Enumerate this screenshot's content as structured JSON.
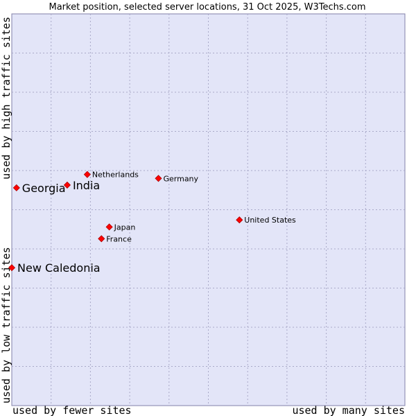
{
  "chart_data": {
    "type": "scatter",
    "title": "Market position, selected server locations, 31 Oct 2025, W3Techs.com",
    "xlabel_left": "used by fewer sites",
    "xlabel_right": "used by many sites",
    "ylabel_bottom": "used by low traffic sites",
    "ylabel_top": "used by high traffic sites",
    "xlim": [
      0,
      100
    ],
    "ylim": [
      0,
      100
    ],
    "grid": true,
    "points": [
      {
        "label": "Georgia",
        "x": 1.2,
        "y": 55.6,
        "highlight": true
      },
      {
        "label": "India",
        "x": 14.1,
        "y": 56.3,
        "highlight": true
      },
      {
        "label": "Netherlands",
        "x": 19.2,
        "y": 59.0,
        "highlight": false
      },
      {
        "label": "Germany",
        "x": 37.3,
        "y": 58.0,
        "highlight": false
      },
      {
        "label": "United States",
        "x": 57.9,
        "y": 47.4,
        "highlight": false
      },
      {
        "label": "Japan",
        "x": 24.8,
        "y": 45.6,
        "highlight": false
      },
      {
        "label": "France",
        "x": 22.8,
        "y": 42.6,
        "highlight": false
      },
      {
        "label": "New Caledonia",
        "x": 0.0,
        "y": 35.2,
        "highlight": true
      }
    ]
  },
  "colors": {
    "plot_bg": "#e3e5f8",
    "plot_border": "#8080a8",
    "marker": "#ff0000",
    "marker_stroke": "#aa0000"
  }
}
